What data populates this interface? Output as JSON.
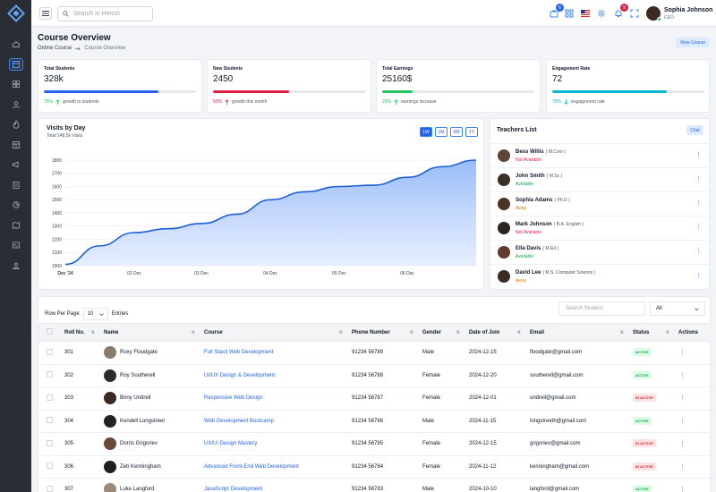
{
  "app": {
    "search_placeholder": "Search in Herozi"
  },
  "colors": {
    "primary": "#2563eb",
    "sidebar": "#2b2d34",
    "success": "#22c55e",
    "danger": "#e11d48",
    "info": "#06b6d4"
  },
  "sidebar": {
    "logo": "diamond-logo",
    "icons": [
      "home-icon",
      "grid-icon",
      "apps-icon",
      "user-icon",
      "fire-icon",
      "book-icon",
      "megaphone-icon",
      "document-icon",
      "chart-pie-icon",
      "map-icon",
      "terminal-icon",
      "people-icon"
    ],
    "active_index": 1
  },
  "topbar": {
    "icons": [
      {
        "name": "briefcase-icon",
        "badge": "6"
      },
      {
        "name": "grid-icon",
        "badge": ""
      },
      {
        "name": "flag-icon",
        "badge": ""
      },
      {
        "name": "sun-icon",
        "badge": ""
      },
      {
        "name": "bell-icon",
        "badge": "9"
      },
      {
        "name": "fullscreen-icon",
        "badge": ""
      }
    ],
    "user": {
      "name": "Sophia Johnson",
      "role": "CEO"
    }
  },
  "header": {
    "title": "Course Overview",
    "breadcrumb": [
      "Online Course",
      "Course Overview"
    ],
    "action": "View Course"
  },
  "stats": [
    {
      "title": "Total Students",
      "value": "328k",
      "pct": "75%",
      "label": "growth in students",
      "progress": 0.75,
      "color": "#2563eb",
      "trend": "up"
    },
    {
      "title": "New Students",
      "value": "2450",
      "pct": "50%",
      "label": "growth this month",
      "progress": 0.5,
      "color": "#e11d48",
      "trend": "up"
    },
    {
      "title": "Total Earnings",
      "value": "25160$",
      "pct": "20%",
      "label": "earnings increase",
      "progress": 0.2,
      "color": "#22c55e",
      "trend": "up"
    },
    {
      "title": "Engagement Rate",
      "value": "72",
      "pct": "75%",
      "label": "engagement rate",
      "progress": 0.75,
      "color": "#06b6d4",
      "trend": "down"
    }
  ],
  "visits": {
    "title": "Visits by Day",
    "subtitle": "Total 248.5k Visits",
    "ranges": [
      "1W",
      "1M",
      "6M",
      "1Y"
    ],
    "active_range": "1W"
  },
  "chart_data": {
    "type": "area",
    "title": "Visits by Day",
    "x_ticks": [
      "Dec '24",
      "02 Dec",
      "03 Dec",
      "04 Dec",
      "05 Dec",
      "06 Dec"
    ],
    "y_ticks": [
      1000,
      1100,
      1200,
      1300,
      1400,
      1500,
      1600,
      1700,
      1800
    ],
    "ylim": [
      1000,
      1800
    ],
    "x": [
      0,
      0.5,
      1,
      1.5,
      2,
      2.5,
      3,
      3.5,
      4,
      4.5,
      5,
      5.5,
      6
    ],
    "series": [
      {
        "values": [
          1010,
          1150,
          1250,
          1280,
          1320,
          1390,
          1500,
          1560,
          1600,
          1610,
          1670,
          1750,
          1800
        ]
      }
    ],
    "grid": true
  },
  "teachers": {
    "title": "Teachers List",
    "action": "Chat",
    "items": [
      {
        "name": "Bess Willis",
        "qual": "( M.Com )",
        "status": "Not Available",
        "state": "off",
        "avatar": "#5b4638"
      },
      {
        "name": "John Smith",
        "qual": "( M.Sc )",
        "status": "Available",
        "state": "on",
        "avatar": "#3a2e29"
      },
      {
        "name": "Sophia Adams",
        "qual": "( Ph.D )",
        "status": "Away",
        "state": "away",
        "avatar": "#4a3428"
      },
      {
        "name": "Mark Johnson",
        "qual": "( B.A. English )",
        "status": "Not Available",
        "state": "off",
        "avatar": "#2d2522"
      },
      {
        "name": "Ella Davis",
        "qual": "( M.Ed )",
        "status": "Available",
        "state": "on",
        "avatar": "#5e3b2e"
      },
      {
        "name": "David Lee",
        "qual": "( M.S. Computer Science )",
        "status": "Away",
        "state": "away",
        "avatar": "#3b2c26"
      }
    ]
  },
  "table": {
    "rows_per_page_label": "Row Per Page",
    "rows_per_page": "10",
    "entries_label": "Entries",
    "search_placeholder": "Search Student",
    "filter": "All",
    "headers": [
      "Roll No.",
      "Name",
      "Course",
      "Phone Number",
      "Gender",
      "Date of Join",
      "Email",
      "Status",
      "Actions"
    ],
    "rows": [
      {
        "roll": "301",
        "name": "Roxy Floodgate",
        "course": "Full Stack Web Development",
        "phone": "91234 56789",
        "gender": "Male",
        "date": "2024-12-15",
        "email": "floodgate@gmail.com",
        "status": "ACTIVE",
        "active": true,
        "avatar": "#8a7a6a"
      },
      {
        "roll": "302",
        "name": "Roy Southerell",
        "course": "UI/UX Design & Development",
        "phone": "91234 56788",
        "gender": "Female",
        "date": "2024-12-20",
        "email": "southerell@gmail.com",
        "status": "ACTIVE",
        "active": true,
        "avatar": "#2f2a28"
      },
      {
        "roll": "303",
        "name": "Briny Undrell",
        "course": "Responsive Web Design",
        "phone": "91234 56787",
        "gender": "Female",
        "date": "2024-12-01",
        "email": "undrell@gmail.com",
        "status": "IN ACTIVE",
        "active": false,
        "avatar": "#3a2a22"
      },
      {
        "roll": "304",
        "name": "Kendell Longstreet",
        "course": "Web Development Bootcamp",
        "phone": "91234 56786",
        "gender": "Male",
        "date": "2024-11-15",
        "email": "longstreeth@gmail.com",
        "status": "ACTIVE",
        "active": true,
        "avatar": "#222"
      },
      {
        "roll": "305",
        "name": "Dorris Grigoriev",
        "course": "UX/UI Design Mastery",
        "phone": "91234 56785",
        "gender": "Female",
        "date": "2024-12-15",
        "email": "grigoriev@gmail.com",
        "status": "IN ACTIVE",
        "active": false,
        "avatar": "#6b4a3a"
      },
      {
        "roll": "306",
        "name": "Zeb Kenningham",
        "course": "Advanced Front-End Web Development",
        "phone": "91234 56784",
        "gender": "Female",
        "date": "2024-11-12",
        "email": "kenningham@gmail.com",
        "status": "IN ACTIVE",
        "active": false,
        "avatar": "#1f1f1f"
      },
      {
        "roll": "307",
        "name": "Luke Langford",
        "course": "JavaScript Development",
        "phone": "91234 56783",
        "gender": "Male",
        "date": "2024-10-10",
        "email": "langford@gmail.com",
        "status": "ACTIVE",
        "active": true,
        "avatar": "#9a8a7a"
      }
    ]
  }
}
